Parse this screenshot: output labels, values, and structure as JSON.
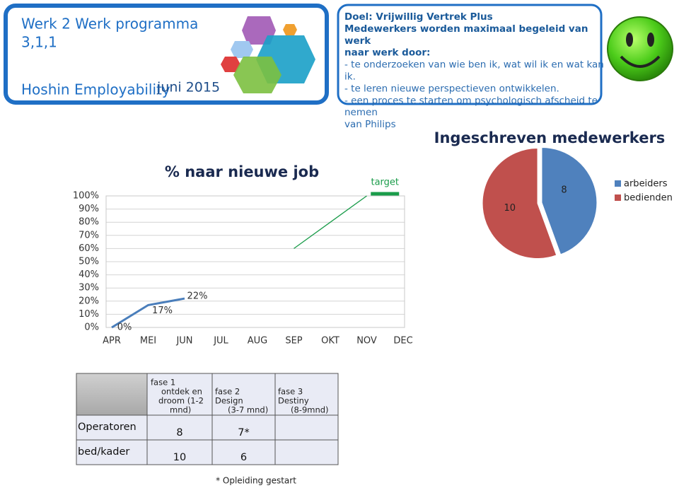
{
  "header": {
    "title": [
      "Werk 2 Werk programma",
      "3,1,1"
    ],
    "subtitle": "Hoshin Employability",
    "date": "juni 2015"
  },
  "goal": {
    "lines": [
      "Doel:  Vrijwillig Vertrek Plus",
      "Medewerkers worden maximaal begeleid van",
      "werk",
      "naar werk door:",
      "- te onderzoeken van wie ben ik, wat wil ik en wat kan",
      "ik.",
      "- te leren nieuwe perspectieven ontwikkelen.",
      "- een proces te starten om psychologisch afscheid te",
      "nemen",
      "van Philips"
    ]
  },
  "chart_data": [
    {
      "type": "line",
      "title": "% naar nieuwe job",
      "categories": [
        "APR",
        "MEI",
        "JUN",
        "JUL",
        "AUG",
        "SEP",
        "OKT",
        "NOV",
        "DEC"
      ],
      "series": [
        {
          "color": "#4a7ebb",
          "values": [
            0,
            17,
            22,
            null,
            null,
            null,
            null,
            null,
            null
          ],
          "value_labels": [
            "0%",
            "17%",
            "22%",
            null,
            null,
            null,
            null,
            null,
            null
          ]
        },
        {
          "name": "target",
          "color": "#1a9c4a",
          "values": [
            null,
            null,
            null,
            null,
            null,
            60,
            80,
            100,
            null
          ]
        }
      ],
      "target": {
        "label": "target",
        "value": 100
      },
      "ylim": [
        0,
        100
      ],
      "yticks": [
        {
          "value": 0,
          "label": "0%"
        },
        {
          "value": 10,
          "label": "10%"
        },
        {
          "value": 20,
          "label": "20%"
        },
        {
          "value": 30,
          "label": "30%"
        },
        {
          "value": 40,
          "label": "40%"
        },
        {
          "value": 50,
          "label": "50%"
        },
        {
          "value": 60,
          "label": "60%"
        },
        {
          "value": 70,
          "label": "70%"
        },
        {
          "value": 80,
          "label": "80%"
        },
        {
          "value": 90,
          "label": "90%"
        },
        {
          "value": 100,
          "label": "100%"
        }
      ],
      "grid": true
    },
    {
      "type": "pie",
      "title": "Ingeschreven medewerkers",
      "categories": [
        "arbeiders",
        "bedienden"
      ],
      "values": [
        8,
        10
      ],
      "colors": [
        "#4f81bd",
        "#c0504d"
      ],
      "legend": "right"
    }
  ],
  "table": {
    "columns": [
      [
        "fase 1",
        "ontdek en",
        "droom (1-2",
        "mnd)"
      ],
      [
        "fase 2",
        "Design",
        "(3-7 mnd)"
      ],
      [
        "fase 3",
        "Destiny",
        "(8-9mnd)"
      ]
    ],
    "rows": [
      {
        "label": "Operatoren",
        "cells": [
          "8",
          "7*"
        ]
      },
      {
        "label": "bed/kader",
        "cells": [
          "10",
          "6"
        ]
      }
    ]
  },
  "footnote": "* Opleiding gestart"
}
